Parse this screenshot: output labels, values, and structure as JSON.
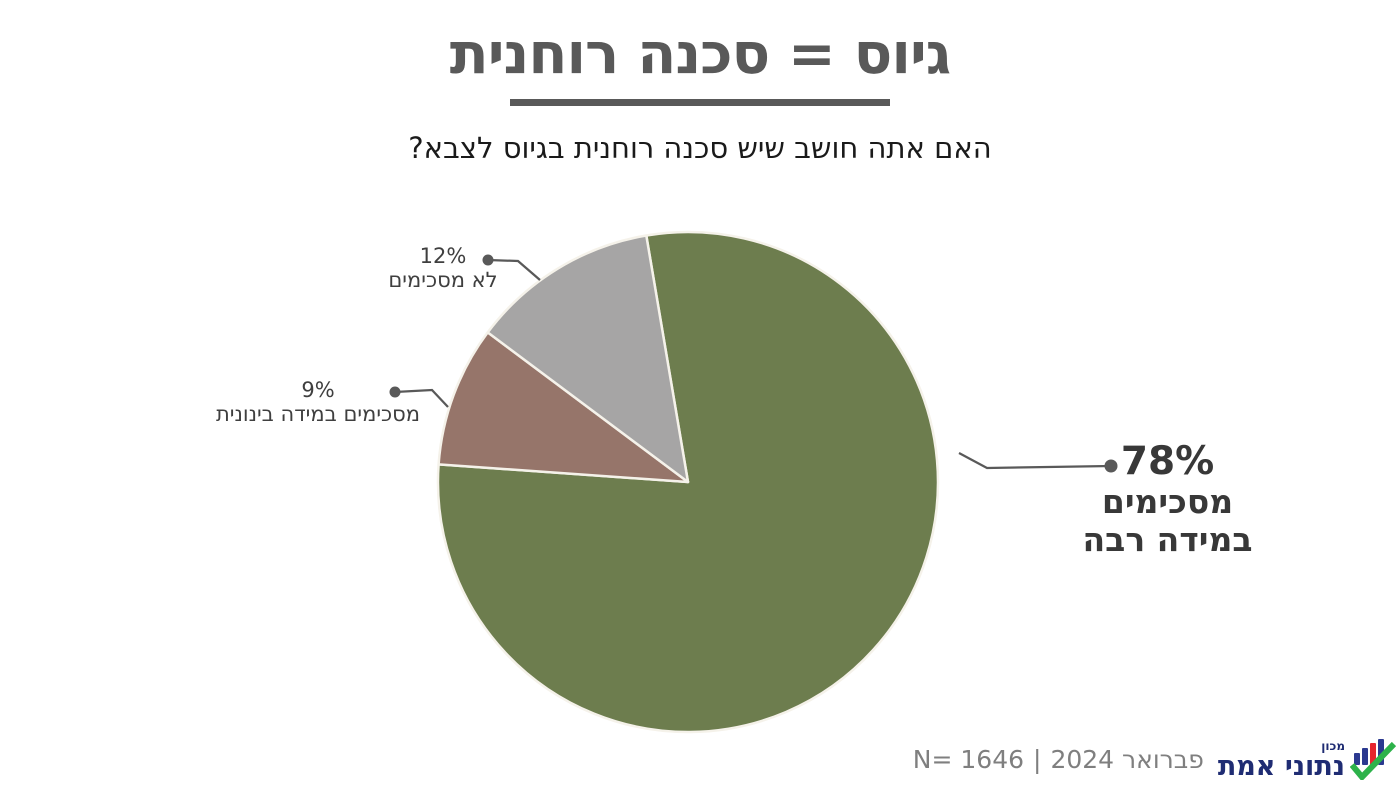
{
  "title": "גיוס = סכנה רוחנית",
  "subtitle": "האם אתה חושב שיש סכנה רוחנית בגיוס לצבא?",
  "chart_data": {
    "type": "pie",
    "title": "גיוס = סכנה רוחנית",
    "question": "האם אתה חושב שיש סכנה רוחנית בגיוס לצבא?",
    "rotation_deg": -9.6,
    "legend_position": "callout-labels",
    "grid": false,
    "slices": [
      {
        "label": "מסכימים במידה רבה",
        "pct_label": "78%",
        "value": 78,
        "color": "#6d7d4e"
      },
      {
        "label": "מסכימים במידה בינונית",
        "pct_label": "9%",
        "value": 9,
        "color": "#96756a"
      },
      {
        "label": "לא מסכימים",
        "pct_label": "12%",
        "value": 12,
        "color": "#a6a5a5"
      }
    ]
  },
  "footer": {
    "n_label": "N= 1646",
    "separator": "|",
    "date_label": "פברואר 2024",
    "logo": {
      "top_word": "מכון",
      "brand": "נתוני אמת",
      "navy": "#1f2c73",
      "bar_blue": "#2b3990",
      "bar_red": "#e5242e",
      "check_green": "#2db24a"
    }
  },
  "colors": {
    "title": "#595959",
    "underline": "#595959",
    "leader_line": "#595959",
    "callout_text": "#3f3f3f",
    "big_callout_text": "#383838",
    "footer_text": "#7f7f7f",
    "slice_border": "#f5f2ea",
    "background": "#ffffff"
  }
}
